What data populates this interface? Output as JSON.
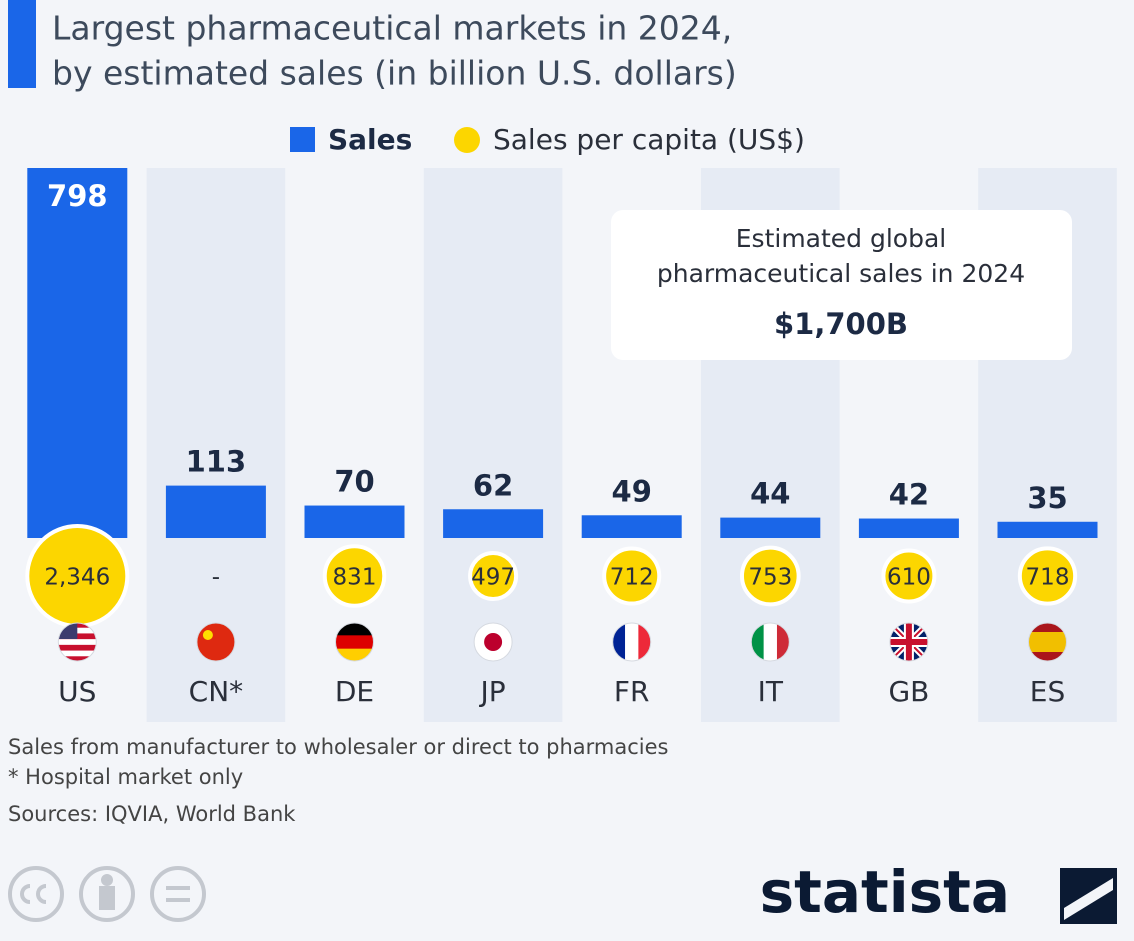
{
  "chart_data": {
    "type": "bar",
    "title": [
      "Largest pharmaceutical markets in 2024,",
      "by estimated sales (in billion U.S. dollars)"
    ],
    "categories": [
      "US",
      "CN*",
      "DE",
      "JP",
      "FR",
      "IT",
      "GB",
      "ES"
    ],
    "series": [
      {
        "name": "Sales",
        "color": "#1a66e8",
        "values": [
          798,
          113,
          70,
          62,
          49,
          44,
          42,
          35
        ]
      },
      {
        "name": "Sales per capita (US$)",
        "color": "#fcd600",
        "values": [
          2346,
          null,
          831,
          497,
          712,
          753,
          610,
          718
        ],
        "value_labels": [
          "2,346",
          "-",
          "831",
          "497",
          "712",
          "753",
          "610",
          "718"
        ]
      }
    ],
    "annotation": {
      "lines": [
        "Estimated global",
        "pharmaceutical sales in 2024"
      ],
      "value_label": "$1,700B"
    },
    "notes": [
      "Sales from manufacturer to wholesaler or direct to pharmacies",
      "* Hospital market only"
    ],
    "source": "Sources: IQVIA, World Bank",
    "brand": "statista"
  }
}
